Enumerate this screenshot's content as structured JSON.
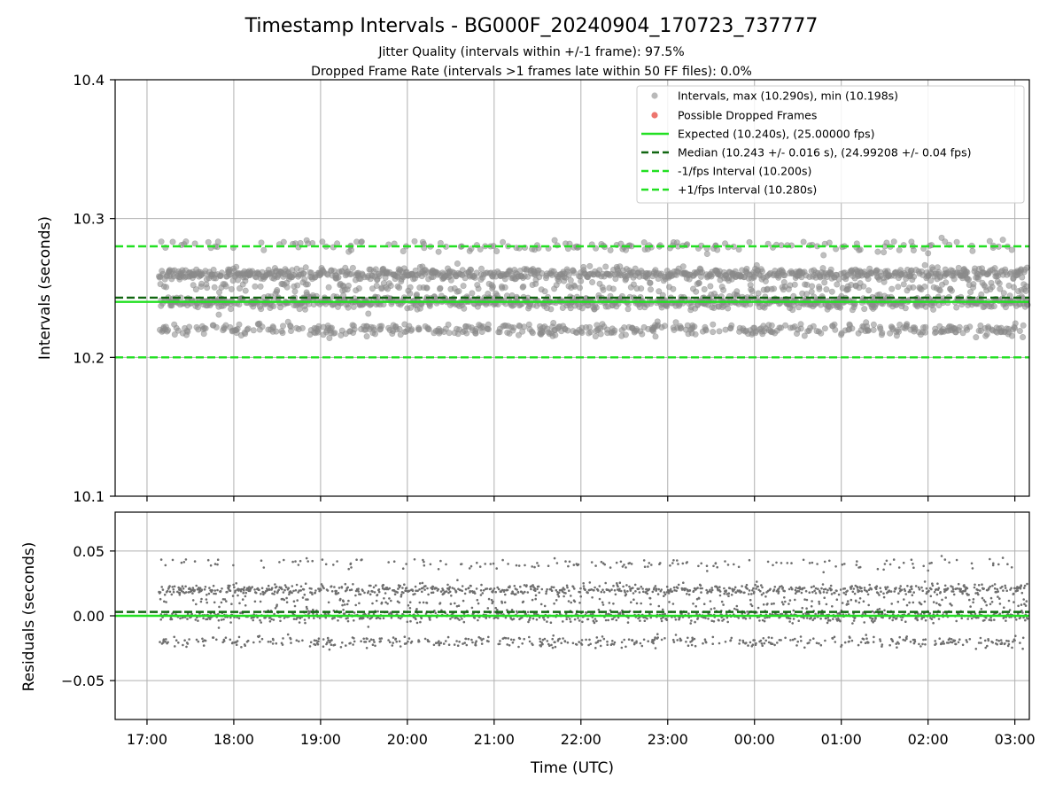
{
  "chart_data": [
    {
      "type": "scatter",
      "title": "Timestamp Intervals - BG000F_20240904_170723_737777",
      "subtitle_lines": [
        "Jitter Quality (intervals within +/-1 frame): 97.5%",
        "Dropped Frame Rate (intervals >1 frames late within 50 FF files): 0.0%"
      ],
      "ylabel": "Intervals (seconds)",
      "xlabel": "",
      "ylim": [
        10.1,
        10.4
      ],
      "yticks": [
        10.1,
        10.2,
        10.3,
        10.4
      ],
      "ytick_labels": [
        "10.1",
        "10.2",
        "10.3",
        "10.4"
      ],
      "grid": true,
      "legend_position": "top-right",
      "x_range_hours": [
        16.633,
        27.167
      ],
      "data_x_range_hours": [
        17.14,
        27.15
      ],
      "series": [
        {
          "name": "Intervals, max (10.290s), min (10.198s)",
          "kind": "scatter",
          "color": "#808080",
          "distribution": {
            "levels": [
              {
                "value": 10.26,
                "weight": 0.34
              },
              {
                "value": 10.24,
                "weight": 0.33
              },
              {
                "value": 10.22,
                "weight": 0.18
              },
              {
                "value": 10.28,
                "weight": 0.07
              },
              {
                "value": 10.25,
                "weight": 0.08
              }
            ],
            "count": 2600,
            "max": 10.29,
            "min": 10.198
          }
        },
        {
          "name": "Possible Dropped Frames",
          "kind": "scatter",
          "color": "#e8524a",
          "points": []
        },
        {
          "name": "Expected (10.240s), (25.00000 fps)",
          "kind": "hline",
          "value": 10.24,
          "color": "#22e022",
          "style": "solid"
        },
        {
          "name": "Median (10.243 +/- 0.016 s), (24.99208 +/- 0.04 fps)",
          "kind": "hline",
          "value": 10.243,
          "color": "#116611",
          "style": "dashed"
        },
        {
          "name": "-1/fps Interval (10.200s)",
          "kind": "hline",
          "value": 10.2,
          "color": "#22e022",
          "style": "dashed"
        },
        {
          "name": "+1/fps Interval (10.280s)",
          "kind": "hline",
          "value": 10.28,
          "color": "#22e022",
          "style": "dashed"
        }
      ]
    },
    {
      "type": "scatter",
      "ylabel": "Residuals (seconds)",
      "xlabel": "Time (UTC)",
      "ylim": [
        -0.08,
        0.08
      ],
      "yticks": [
        -0.05,
        0.0,
        0.05
      ],
      "ytick_labels": [
        "−0.05",
        "0.00",
        "0.05"
      ],
      "xticks_hours": [
        17,
        18,
        19,
        20,
        21,
        22,
        23,
        24,
        25,
        26,
        27
      ],
      "xtick_labels": [
        "17:00",
        "18:00",
        "19:00",
        "20:00",
        "21:00",
        "22:00",
        "23:00",
        "00:00",
        "01:00",
        "02:00",
        "03:00"
      ],
      "x_range_hours": [
        16.633,
        27.167
      ],
      "grid": true,
      "series": [
        {
          "name": "",
          "kind": "scatter",
          "color": "#707070",
          "description_of_values": "residual = interval - 10.240"
        },
        {
          "name": "",
          "kind": "hline",
          "value": 0.0,
          "color": "#22e022",
          "style": "solid"
        },
        {
          "name": "",
          "kind": "hline",
          "value": 0.003,
          "color": "#116611",
          "style": "dashed"
        }
      ]
    }
  ]
}
